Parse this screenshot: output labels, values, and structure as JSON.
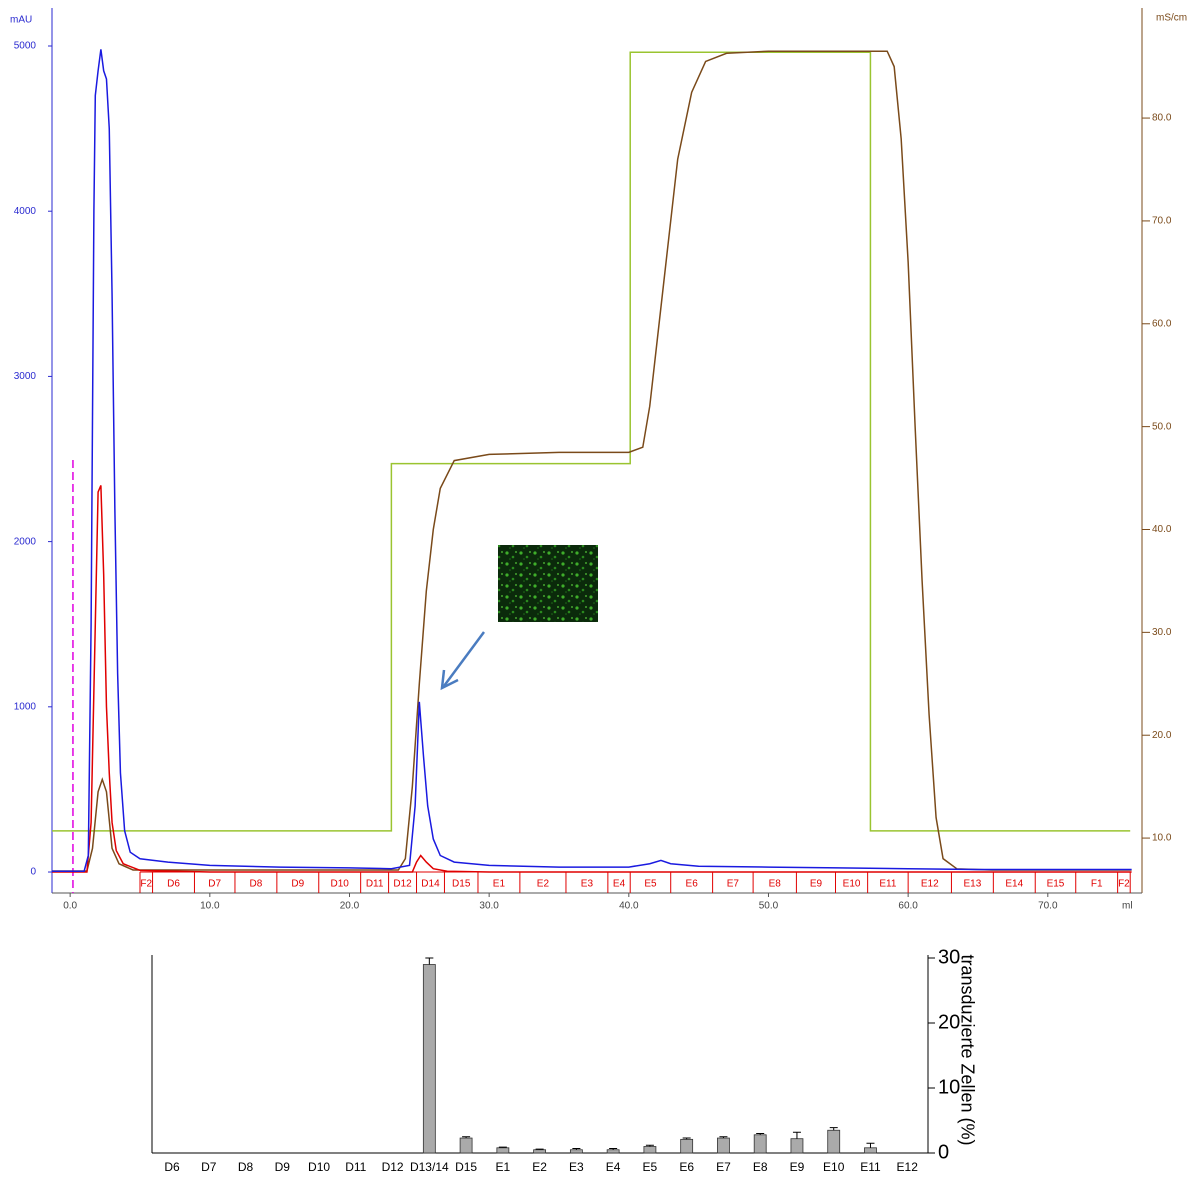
{
  "chart_data": [
    {
      "type": "line",
      "x_label": "ml",
      "y_label": "mAU",
      "y2_label": "mS/cm",
      "xlim": [
        -1.3,
        76.1
      ],
      "ylim": [
        -127,
        5230
      ],
      "y2lim": [
        4.66,
        90.7
      ],
      "xticks": [
        {
          "value": 0,
          "label": "0.0"
        },
        {
          "value": 10,
          "label": "10.0"
        },
        {
          "value": 20,
          "label": "20.0"
        },
        {
          "value": 30,
          "label": "30.0"
        },
        {
          "value": 40,
          "label": "40.0"
        },
        {
          "value": 50,
          "label": "50.0"
        },
        {
          "value": 60,
          "label": "60.0"
        },
        {
          "value": 70,
          "label": "70.0"
        }
      ],
      "yticks": [
        0,
        1000,
        2000,
        3000,
        4000,
        5000
      ],
      "y2ticks": [
        {
          "value": 10,
          "label": "10.0"
        },
        {
          "value": 20,
          "label": "20.0"
        },
        {
          "value": 30,
          "label": "30.0"
        },
        {
          "value": 40,
          "label": "40.0"
        },
        {
          "value": 50,
          "label": "50.0"
        },
        {
          "value": 60,
          "label": "60.0"
        },
        {
          "value": 70,
          "label": "70.0"
        },
        {
          "value": 80,
          "label": "80.0"
        }
      ],
      "y_color": "#2a2ad0",
      "y2_color": "#7a4a1a",
      "series": [
        {
          "color": "#9ac430",
          "axis": "y2",
          "x": [
            -1.3,
            23.0,
            23.0,
            40.1,
            40.1,
            57.3,
            57.3,
            75.9
          ],
          "values": [
            10.7,
            10.7,
            46.4,
            46.4,
            86.4,
            86.4,
            10.7,
            10.7
          ]
        },
        {
          "color": "#7a4a1a",
          "axis": "y2",
          "x": [
            -1.3,
            1.2,
            1.6,
            2.0,
            2.3,
            2.6,
            3.0,
            3.5,
            4.5,
            23.5,
            24.0,
            24.5,
            25.0,
            25.5,
            26.0,
            26.5,
            27.5,
            30,
            35,
            40,
            41.0,
            41.5,
            42.5,
            43.5,
            44.5,
            45.5,
            47,
            50,
            58.5,
            59.0,
            59.5,
            60,
            60.5,
            61,
            61.5,
            62,
            62.5,
            63.5,
            66,
            76
          ],
          "values": [
            6.8,
            6.8,
            9,
            14.5,
            15.7,
            14.5,
            9,
            7.5,
            6.9,
            6.9,
            8,
            15,
            25,
            34,
            40,
            44,
            46.7,
            47.3,
            47.5,
            47.5,
            48,
            52,
            64,
            76,
            82.5,
            85.5,
            86.3,
            86.5,
            86.5,
            85,
            78,
            66,
            50,
            35,
            22,
            12,
            8,
            7,
            6.9,
            6.9
          ]
        },
        {
          "color": "#e00000",
          "axis": "y",
          "x": [
            -1.3,
            1.2,
            1.5,
            1.8,
            2.0,
            2.2,
            2.4,
            2.6,
            2.8,
            3.0,
            3.3,
            3.8,
            5,
            10,
            24.5,
            24.8,
            25.1,
            25.5,
            26,
            27,
            30,
            76
          ],
          "values": [
            0,
            0,
            300,
            1500,
            2300,
            2340,
            1800,
            1000,
            600,
            300,
            130,
            50,
            10,
            0,
            0,
            60,
            100,
            60,
            20,
            5,
            0,
            0
          ]
        },
        {
          "color": "#1a1ae0",
          "axis": "y",
          "x": [
            -1.3,
            1.0,
            1.3,
            1.5,
            1.7,
            1.8,
            2.0,
            2.2,
            2.4,
            2.6,
            2.8,
            3.0,
            3.2,
            3.4,
            3.6,
            3.9,
            4.3,
            5.0,
            7,
            10,
            15,
            20,
            23,
            24.3,
            24.7,
            25.0,
            25.3,
            25.6,
            26.0,
            26.5,
            27.5,
            30,
            35,
            40,
            41.5,
            42.3,
            43,
            45,
            50,
            55,
            60,
            65,
            70,
            76
          ],
          "values": [
            5,
            5,
            100,
            1500,
            4000,
            4700,
            4850,
            4980,
            4850,
            4800,
            4500,
            3500,
            2200,
            1200,
            600,
            250,
            120,
            80,
            60,
            40,
            30,
            25,
            20,
            40,
            400,
            1030,
            700,
            400,
            200,
            100,
            60,
            40,
            30,
            30,
            50,
            70,
            50,
            35,
            30,
            25,
            20,
            15,
            15,
            15
          ]
        }
      ],
      "injection_x": 0.2,
      "injection_color": "#e000e0",
      "fractions": {
        "color": "#e00000",
        "labels": [
          "F2",
          "D6",
          "D7",
          "D8",
          "D9",
          "D10",
          "D11",
          "D12",
          "D14",
          "D15",
          "E1",
          "E2",
          "E3",
          "E4",
          "E5",
          "E6",
          "E7",
          "E8",
          "E9",
          "E10",
          "E11",
          "E12",
          "E13",
          "E14",
          "E15",
          "F1",
          "F2"
        ],
        "bounds": [
          5.0,
          5.9,
          8.9,
          11.8,
          14.8,
          17.8,
          20.8,
          22.8,
          24.8,
          26.8,
          29.2,
          32.2,
          35.5,
          38.5,
          40.1,
          43.0,
          46.0,
          48.9,
          52.0,
          54.8,
          57.1,
          60.0,
          63.1,
          66.1,
          69.1,
          72.0,
          75.0,
          75.9
        ]
      }
    },
    {
      "type": "bar",
      "y_label": "transduzierte Zellen (%)",
      "color": "#aaaaaa",
      "categories": [
        "D6",
        "D7",
        "D8",
        "D9",
        "D10",
        "D11",
        "D12",
        "D13/14",
        "D15",
        "E1",
        "E2",
        "E3",
        "E4",
        "E5",
        "E6",
        "E7",
        "E8",
        "E9",
        "E10",
        "E11",
        "E12"
      ],
      "values": [
        0,
        0,
        0,
        0,
        0,
        0,
        0,
        29,
        2.3,
        0.8,
        0.5,
        0.5,
        0.5,
        1,
        2.1,
        2.3,
        2.8,
        2.2,
        3.5,
        0.8,
        0
      ],
      "errors": [
        0,
        0,
        0,
        0,
        0,
        0,
        0,
        1,
        0.2,
        0.1,
        0.1,
        0.2,
        0.2,
        0.2,
        0.2,
        0.2,
        0.2,
        1,
        0.4,
        0.7,
        0
      ],
      "ylim": [
        0,
        30
      ],
      "yticks": [
        0,
        10,
        20,
        30
      ]
    }
  ]
}
